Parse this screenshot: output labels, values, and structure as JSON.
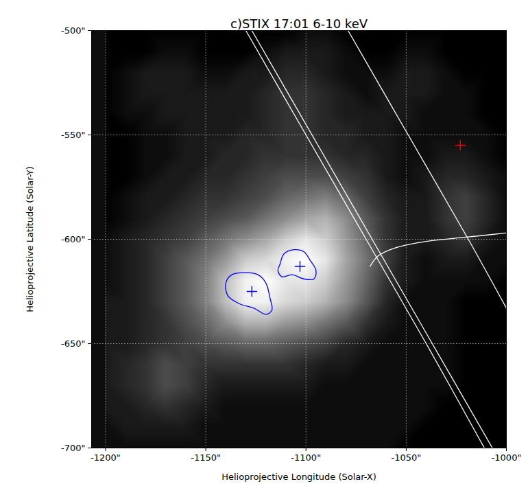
{
  "chart_data": {
    "type": "image",
    "title": "c)STIX 17:01 6-10 keV",
    "x_label": "Helioprojective Longitude (Solar-X)",
    "y_label": "Helioprojective Latitude (Solar-Y)",
    "xlim": [
      -1207,
      -1000
    ],
    "ylim": [
      -700,
      -500
    ],
    "xticks": [
      {
        "value": -1200,
        "label": "-1200\""
      },
      {
        "value": -1150,
        "label": "-1150\""
      },
      {
        "value": -1100,
        "label": "-1100\""
      },
      {
        "value": -1050,
        "label": "-1050\""
      },
      {
        "value": -1000,
        "label": "-1000\""
      }
    ],
    "yticks": [
      {
        "value": -500,
        "label": "-500\""
      },
      {
        "value": -550,
        "label": "-550\""
      },
      {
        "value": -600,
        "label": "-600\""
      },
      {
        "value": -650,
        "label": "-650\""
      },
      {
        "value": -700,
        "label": "-700\""
      }
    ],
    "grid": true,
    "image": {
      "x": [
        -1200,
        -1190,
        -1180,
        -1170,
        -1160,
        -1150,
        -1140,
        -1130,
        -1120,
        -1110,
        -1100,
        -1090,
        -1080,
        -1070,
        -1060,
        -1050,
        -1040,
        -1030,
        -1020,
        -1010,
        -1000
      ],
      "y": [
        -500,
        -510,
        -520,
        -530,
        -540,
        -550,
        -560,
        -570,
        -580,
        -590,
        -600,
        -610,
        -620,
        -630,
        -640,
        -650,
        -660,
        -670,
        -680,
        -690,
        -700
      ],
      "values": [
        [
          0,
          0,
          0,
          0,
          0,
          0,
          0,
          0,
          0,
          0,
          0.05,
          0.05,
          0,
          0,
          0,
          0,
          0,
          0,
          0,
          0,
          0
        ],
        [
          0,
          0,
          0,
          0.05,
          0.05,
          0,
          0,
          0,
          0.05,
          0.1,
          0.1,
          0.1,
          0.05,
          0,
          0,
          0.05,
          0.05,
          0,
          0,
          0,
          0
        ],
        [
          0,
          0.05,
          0.1,
          0.1,
          0.1,
          0.05,
          0.05,
          0.1,
          0.1,
          0.15,
          0.15,
          0.1,
          0.05,
          0.05,
          0.05,
          0.1,
          0.1,
          0.05,
          0,
          0,
          0
        ],
        [
          0,
          0.05,
          0.1,
          0.1,
          0.1,
          0.1,
          0.1,
          0.1,
          0.15,
          0.2,
          0.2,
          0.15,
          0.1,
          0.05,
          0.1,
          0.1,
          0.1,
          0.05,
          0.05,
          0,
          0
        ],
        [
          0,
          0.05,
          0.05,
          0.1,
          0.1,
          0.1,
          0.1,
          0.1,
          0.15,
          0.2,
          0.2,
          0.15,
          0.1,
          0.1,
          0.1,
          0.1,
          0.05,
          0.05,
          0.05,
          0,
          0
        ],
        [
          0,
          0,
          0.05,
          0.05,
          0.1,
          0.1,
          0.1,
          0.15,
          0.15,
          0.2,
          0.2,
          0.15,
          0.15,
          0.1,
          0.1,
          0.05,
          0.05,
          0.05,
          0.05,
          0.05,
          0
        ],
        [
          0,
          0,
          0.05,
          0.05,
          0.1,
          0.1,
          0.15,
          0.15,
          0.2,
          0.2,
          0.2,
          0.2,
          0.15,
          0.15,
          0.1,
          0.05,
          0.05,
          0.1,
          0.1,
          0.05,
          0
        ],
        [
          0,
          0,
          0.05,
          0.1,
          0.1,
          0.15,
          0.15,
          0.2,
          0.25,
          0.3,
          0.3,
          0.3,
          0.25,
          0.2,
          0.1,
          0.05,
          0.1,
          0.15,
          0.15,
          0.1,
          0.05
        ],
        [
          0,
          0.05,
          0.1,
          0.1,
          0.15,
          0.2,
          0.2,
          0.25,
          0.3,
          0.4,
          0.45,
          0.5,
          0.4,
          0.25,
          0.15,
          0.1,
          0.1,
          0.2,
          0.25,
          0.15,
          0.05
        ],
        [
          0,
          0.05,
          0.1,
          0.15,
          0.2,
          0.25,
          0.3,
          0.35,
          0.45,
          0.55,
          0.65,
          0.7,
          0.55,
          0.35,
          0.2,
          0.1,
          0.1,
          0.2,
          0.25,
          0.15,
          0.05
        ],
        [
          0.05,
          0.1,
          0.15,
          0.2,
          0.25,
          0.35,
          0.45,
          0.55,
          0.65,
          0.8,
          0.9,
          0.8,
          0.6,
          0.4,
          0.2,
          0.1,
          0.1,
          0.15,
          0.2,
          0.1,
          0.05
        ],
        [
          0.05,
          0.1,
          0.15,
          0.25,
          0.35,
          0.45,
          0.6,
          0.8,
          0.85,
          0.95,
          1.0,
          0.9,
          0.65,
          0.45,
          0.25,
          0.1,
          0.05,
          0.1,
          0.1,
          0.05,
          0.05
        ],
        [
          0.05,
          0.1,
          0.15,
          0.25,
          0.35,
          0.5,
          0.75,
          0.95,
          1.0,
          0.9,
          0.9,
          0.8,
          0.6,
          0.4,
          0.2,
          0.1,
          0.05,
          0.05,
          0.05,
          0.05,
          0
        ],
        [
          0.1,
          0.1,
          0.15,
          0.25,
          0.35,
          0.5,
          0.75,
          0.95,
          0.95,
          0.85,
          0.8,
          0.7,
          0.55,
          0.35,
          0.15,
          0.05,
          0.05,
          0.05,
          0,
          0,
          0
        ],
        [
          0.1,
          0.1,
          0.15,
          0.2,
          0.3,
          0.4,
          0.55,
          0.7,
          0.7,
          0.6,
          0.55,
          0.45,
          0.35,
          0.2,
          0.1,
          0.05,
          0.05,
          0.05,
          0,
          0,
          0
        ],
        [
          0.1,
          0.1,
          0.15,
          0.2,
          0.25,
          0.3,
          0.35,
          0.4,
          0.4,
          0.35,
          0.3,
          0.25,
          0.15,
          0.1,
          0.05,
          0.05,
          0.05,
          0.05,
          0,
          0,
          0
        ],
        [
          0.1,
          0.15,
          0.2,
          0.3,
          0.25,
          0.2,
          0.2,
          0.2,
          0.2,
          0.2,
          0.15,
          0.1,
          0.1,
          0.05,
          0.05,
          0.05,
          0.05,
          0.05,
          0,
          0,
          0
        ],
        [
          0.1,
          0.15,
          0.2,
          0.3,
          0.25,
          0.15,
          0.1,
          0.1,
          0.1,
          0.1,
          0.1,
          0.05,
          0.05,
          0.05,
          0.05,
          0.05,
          0.05,
          0.05,
          0,
          0,
          0
        ],
        [
          0.1,
          0.1,
          0.15,
          0.2,
          0.15,
          0.1,
          0.05,
          0.05,
          0.05,
          0.05,
          0.05,
          0.05,
          0.05,
          0.05,
          0.05,
          0.05,
          0.05,
          0,
          0,
          0,
          0
        ],
        [
          0.05,
          0.1,
          0.1,
          0.1,
          0.1,
          0.05,
          0.05,
          0.05,
          0.05,
          0.05,
          0.05,
          0.05,
          0.05,
          0.05,
          0.05,
          0.05,
          0,
          0,
          0,
          0,
          0
        ],
        [
          0.05,
          0.05,
          0.05,
          0.05,
          0.05,
          0.05,
          0.05,
          0.05,
          0.05,
          0.05,
          0.05,
          0.05,
          0.05,
          0.05,
          0.05,
          0,
          0,
          0,
          0,
          0,
          0
        ]
      ]
    },
    "lines": [
      {
        "color": "white",
        "points": [
          [
            -1130,
            -500
          ],
          [
            -1100,
            -550
          ],
          [
            -1070,
            -600
          ],
          [
            -1040,
            -650
          ],
          [
            -1011,
            -700
          ]
        ]
      },
      {
        "color": "white",
        "points": [
          [
            -1127,
            -500
          ],
          [
            -1097,
            -550
          ],
          [
            -1067,
            -600
          ],
          [
            -1037,
            -650
          ],
          [
            -1007,
            -700
          ]
        ]
      },
      {
        "color": "white",
        "points": [
          [
            -1079,
            -500
          ],
          [
            -1049,
            -550
          ],
          [
            -1019,
            -600
          ],
          [
            -1000,
            -633
          ]
        ]
      },
      {
        "color": "white",
        "points": [
          [
            -1068,
            -613
          ],
          [
            -1064,
            -608
          ],
          [
            -1055,
            -604
          ],
          [
            -1040,
            -601
          ],
          [
            -1020,
            -599
          ],
          [
            -1000,
            -597
          ]
        ]
      }
    ],
    "contours": [
      {
        "color": "blue",
        "points": [
          [
            -1140,
            -621
          ],
          [
            -1137,
            -617
          ],
          [
            -1130,
            -616
          ],
          [
            -1124,
            -617
          ],
          [
            -1120,
            -621
          ],
          [
            -1118,
            -628
          ],
          [
            -1117,
            -634
          ],
          [
            -1120,
            -636
          ],
          [
            -1126,
            -633
          ],
          [
            -1133,
            -631
          ],
          [
            -1139,
            -627
          ]
        ]
      },
      {
        "color": "blue",
        "points": [
          [
            -1113,
            -612
          ],
          [
            -1111,
            -607
          ],
          [
            -1106,
            -605
          ],
          [
            -1101,
            -606
          ],
          [
            -1098,
            -610
          ],
          [
            -1095,
            -615
          ],
          [
            -1096,
            -619
          ],
          [
            -1101,
            -619
          ],
          [
            -1107,
            -617
          ],
          [
            -1112,
            -618
          ],
          [
            -1114,
            -615
          ]
        ]
      }
    ],
    "markers": [
      {
        "x": -1127,
        "y": -625,
        "color": "blue",
        "marker": "plus"
      },
      {
        "x": -1103,
        "y": -613,
        "color": "blue",
        "marker": "plus"
      },
      {
        "x": -1023,
        "y": -555,
        "color": "red",
        "marker": "plus"
      }
    ]
  }
}
